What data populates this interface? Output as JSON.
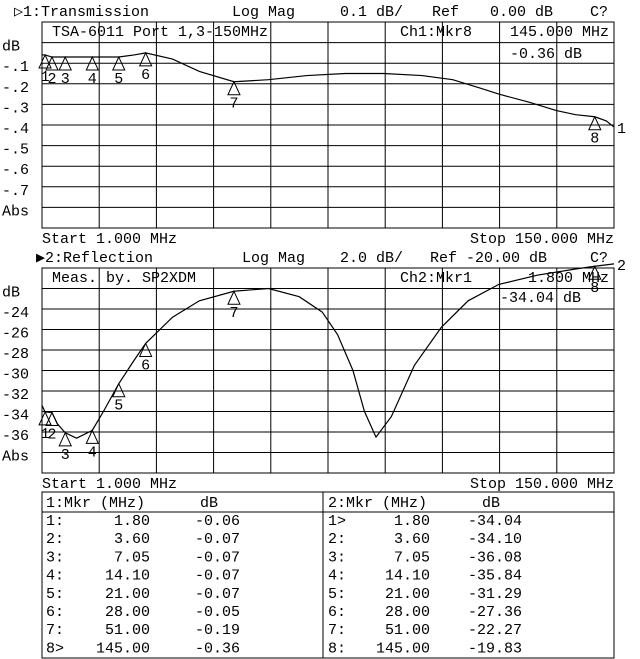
{
  "chart_data": [
    {
      "type": "line",
      "header": [
        "▷1:Transmission",
        "Log Mag",
        "0.1 dB/",
        "Ref",
        "0.00 dB",
        "C?"
      ],
      "subheader": [
        "TSA-6011 Port 1,3-150MHz",
        "Ch1:Mkr8",
        "145.000 MHz",
        "-0.36 dB"
      ],
      "start_label": "Start 1.000 MHz",
      "stop_label": "Stop 150.000 MHz",
      "xlim": [
        1,
        150
      ],
      "ylim": [
        -0.9,
        0.1
      ],
      "yticks": [
        {
          "value": 0,
          "label": "dB"
        },
        {
          "value": -0.1,
          "label": "-.1"
        },
        {
          "value": -0.2,
          "label": "-.2"
        },
        {
          "value": -0.3,
          "label": "-.3"
        },
        {
          "value": -0.4,
          "label": "-.4"
        },
        {
          "value": -0.5,
          "label": "-.5"
        },
        {
          "value": -0.6,
          "label": "-.6"
        },
        {
          "value": -0.7,
          "label": "-.7"
        },
        {
          "value": -0.8,
          "label": "Abs"
        }
      ],
      "grid": true,
      "color": "#000000",
      "trace_label": "1",
      "x": [
        1,
        1.8,
        3.6,
        7.05,
        14.1,
        21,
        25,
        28,
        35,
        42,
        51,
        60,
        70,
        80,
        90,
        100,
        108,
        115,
        120,
        128,
        135,
        140,
        145,
        148,
        150
      ],
      "values": [
        -0.06,
        -0.06,
        -0.07,
        -0.07,
        -0.07,
        -0.07,
        -0.06,
        -0.05,
        -0.08,
        -0.14,
        -0.19,
        -0.18,
        -0.16,
        -0.15,
        -0.15,
        -0.16,
        -0.18,
        -0.22,
        -0.25,
        -0.29,
        -0.33,
        -0.35,
        -0.36,
        -0.38,
        -0.41
      ],
      "markers": {
        "labels": [
          "1",
          "2",
          "3",
          "4",
          "5",
          "6",
          "7",
          "8"
        ],
        "x": [
          1.8,
          3.6,
          7.05,
          14.1,
          21,
          28,
          51,
          145
        ],
        "values": [
          -0.06,
          -0.07,
          -0.07,
          -0.07,
          -0.07,
          -0.05,
          -0.19,
          -0.36
        ]
      }
    },
    {
      "type": "line",
      "header": [
        "▶2:Reflection",
        "Log Mag",
        "2.0 dB/",
        "Ref -20.00 dB",
        "C?"
      ],
      "subheader": [
        "Meas. by. SP2XDM",
        "Ch2:Mkr1",
        "1.800 MHz",
        "-34.04 dB"
      ],
      "start_label": "Start 1.000 MHz",
      "stop_label": "Stop 150.000 MHz",
      "xlim": [
        1,
        150
      ],
      "ylim": [
        -40,
        -20
      ],
      "yticks": [
        {
          "value": -22,
          "label": "dB"
        },
        -24,
        -26,
        -28,
        -30,
        -32,
        -34,
        -36,
        {
          "value": -38,
          "label": "Abs"
        }
      ],
      "grid": true,
      "color": "#000000",
      "trace_label": "2",
      "x": [
        1,
        1.8,
        3.6,
        5,
        7.05,
        10,
        14.1,
        17,
        21,
        25,
        28,
        35,
        42,
        51,
        60,
        68,
        74,
        78,
        82,
        85,
        88,
        92,
        98,
        105,
        112,
        120,
        130,
        140,
        145,
        150
      ],
      "values": [
        -33.4,
        -34.04,
        -34.1,
        -35.2,
        -36.08,
        -36.6,
        -35.84,
        -34,
        -31.29,
        -29,
        -27.36,
        -24.8,
        -23.2,
        -22.27,
        -22,
        -22.8,
        -24.3,
        -26.5,
        -30,
        -34,
        -36.5,
        -34.5,
        -29.5,
        -25.8,
        -23.2,
        -21.6,
        -20.7,
        -20.1,
        -19.83,
        -19.6
      ],
      "markers": {
        "labels": [
          "1",
          "2",
          "3",
          "4",
          "5",
          "6",
          "7",
          "8"
        ],
        "x": [
          1.8,
          3.6,
          7.05,
          14.1,
          21,
          28,
          51,
          145
        ],
        "values": [
          -34.04,
          -34.1,
          -36.08,
          -35.84,
          -31.29,
          -27.36,
          -22.27,
          -19.83
        ]
      }
    }
  ],
  "marker_table": [
    {
      "headers": [
        "1:Mkr (MHz)",
        "dB"
      ],
      "rows": [
        [
          "1:",
          "1.80",
          "-0.06"
        ],
        [
          "2:",
          "3.60",
          "-0.07"
        ],
        [
          "3:",
          "7.05",
          "-0.07"
        ],
        [
          "4:",
          "14.10",
          "-0.07"
        ],
        [
          "5:",
          "21.00",
          "-0.07"
        ],
        [
          "6:",
          "28.00",
          "-0.05"
        ],
        [
          "7:",
          "51.00",
          "-0.19"
        ],
        [
          "8>",
          "145.00",
          "-0.36"
        ]
      ]
    },
    {
      "headers": [
        "2:Mkr (MHz)",
        "dB"
      ],
      "rows": [
        [
          "1>",
          "1.80",
          "-34.04"
        ],
        [
          "2:",
          "3.60",
          "-34.10"
        ],
        [
          "3:",
          "7.05",
          "-36.08"
        ],
        [
          "4:",
          "14.10",
          "-35.84"
        ],
        [
          "5:",
          "21.00",
          "-31.29"
        ],
        [
          "6:",
          "28.00",
          "-27.36"
        ],
        [
          "7:",
          "51.00",
          "-22.27"
        ],
        [
          "8:",
          "145.00",
          "-19.83"
        ]
      ]
    }
  ]
}
